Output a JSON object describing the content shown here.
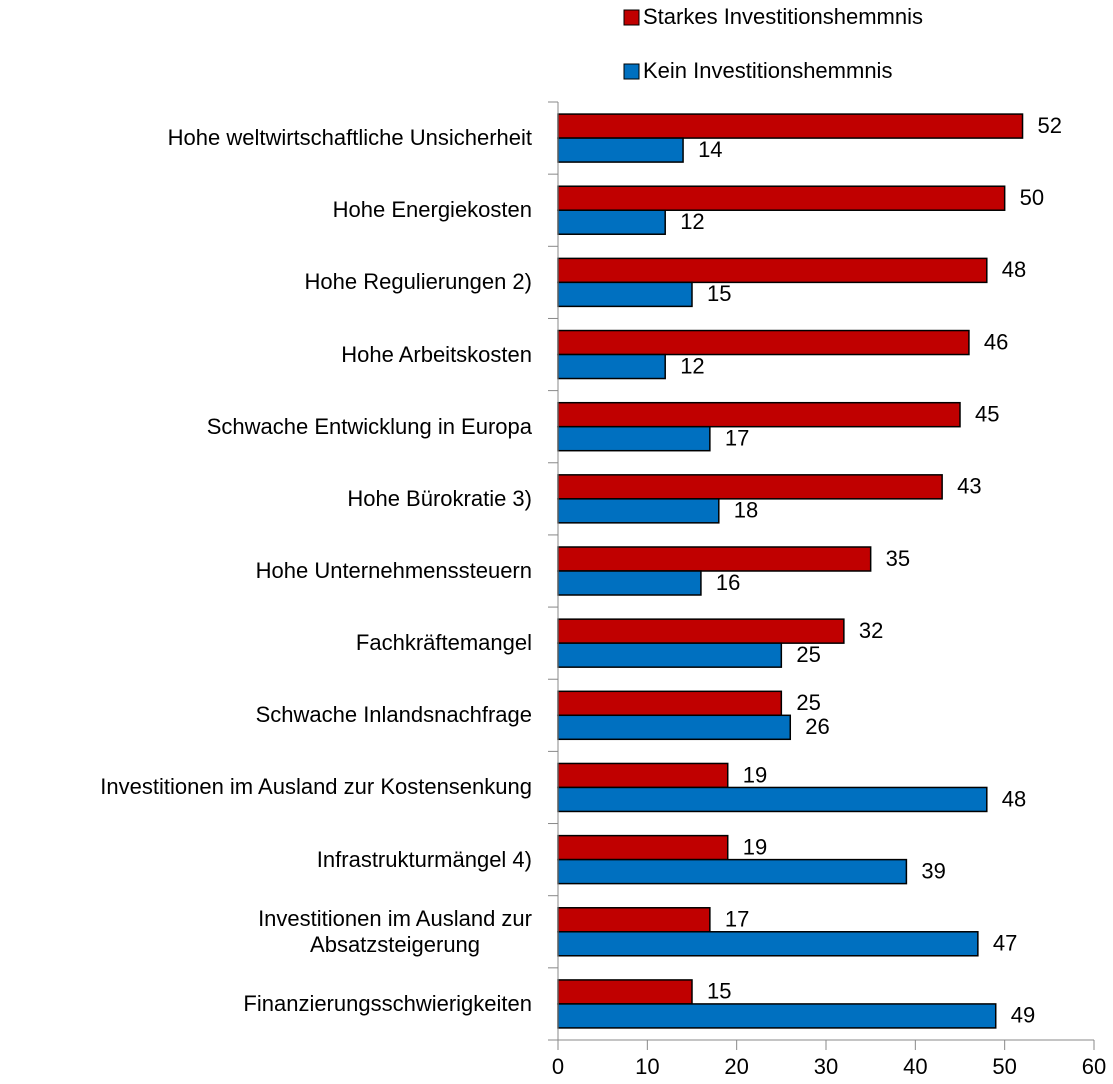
{
  "chart_data": {
    "type": "hbar",
    "categories": [
      "Hohe weltwirtschaftliche Unsicherheit",
      "Hohe Energiekosten",
      "Hohe Regulierungen 2)",
      "Hohe Arbeitskosten",
      "Schwache Entwicklung in Europa",
      "Hohe Bürokratie 3)",
      "Hohe Unternehmenssteuern",
      "Fachkräftemangel",
      "Schwache Inlandsnachfrage",
      "Investitionen im Ausland zur Kostensenkung",
      "Infrastrukturmängel 4)",
      "Investitionen im Ausland zur\nAbsatzsteigerung",
      "Finanzierungsschwierigkeiten"
    ],
    "series": [
      {
        "name": "Starkes Investitionshemmnis",
        "color": "#c00000",
        "values": [
          52,
          50,
          48,
          46,
          45,
          43,
          35,
          32,
          25,
          19,
          19,
          17,
          15
        ]
      },
      {
        "name": "Kein Investitionshemmnis",
        "color": "#0070c0",
        "values": [
          14,
          12,
          15,
          12,
          17,
          18,
          16,
          25,
          26,
          48,
          39,
          47,
          49
        ]
      }
    ],
    "xlim": [
      0,
      60
    ],
    "xticks": [
      0,
      10,
      20,
      30,
      40,
      50,
      60
    ],
    "legend": "top"
  }
}
